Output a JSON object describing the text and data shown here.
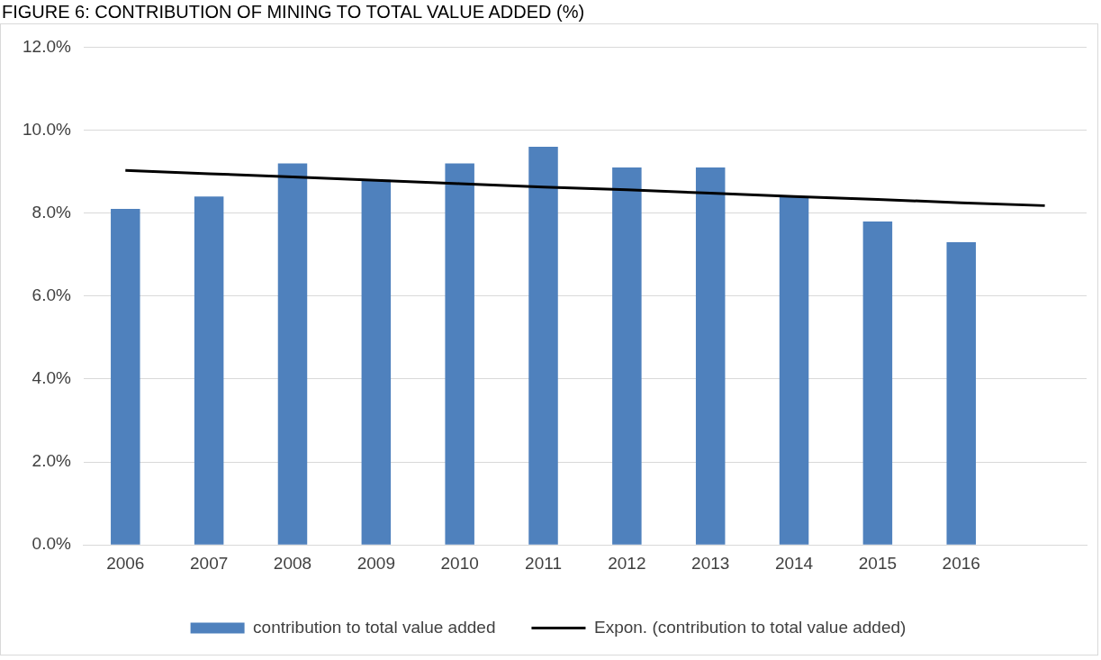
{
  "chart_data": {
    "type": "bar",
    "title": "FIGURE 6: CONTRIBUTION OF MINING TO TOTAL VALUE ADDED (%)",
    "categories": [
      "2006",
      "2007",
      "2008",
      "2009",
      "2010",
      "2011",
      "2012",
      "2013",
      "2014",
      "2015",
      "2016",
      null
    ],
    "series": [
      {
        "name": "contribution to total value added",
        "color": "#4f81bd",
        "values": [
          8.1,
          8.4,
          9.2,
          8.8,
          9.2,
          9.6,
          9.1,
          9.1,
          8.4,
          7.8,
          7.3,
          null
        ]
      },
      {
        "name": "Expon. (contribution to total value added)",
        "type": "line",
        "color": "#000000",
        "values": [
          9.03,
          8.95,
          8.87,
          8.79,
          8.71,
          8.63,
          8.56,
          8.48,
          8.4,
          8.33,
          8.25,
          8.18
        ]
      }
    ],
    "ylim": [
      0,
      12
    ],
    "yticks": [
      {
        "value": 0,
        "label": "0.0%"
      },
      {
        "value": 2,
        "label": "2.0%"
      },
      {
        "value": 4,
        "label": "4.0%"
      },
      {
        "value": 6,
        "label": "6.0%"
      },
      {
        "value": 8,
        "label": "8.0%"
      },
      {
        "value": 10,
        "label": "10.0%"
      },
      {
        "value": 12,
        "label": "12.0%"
      }
    ],
    "grid": "y",
    "legend": "bottom",
    "marker": "none",
    "line_style": "solid"
  }
}
